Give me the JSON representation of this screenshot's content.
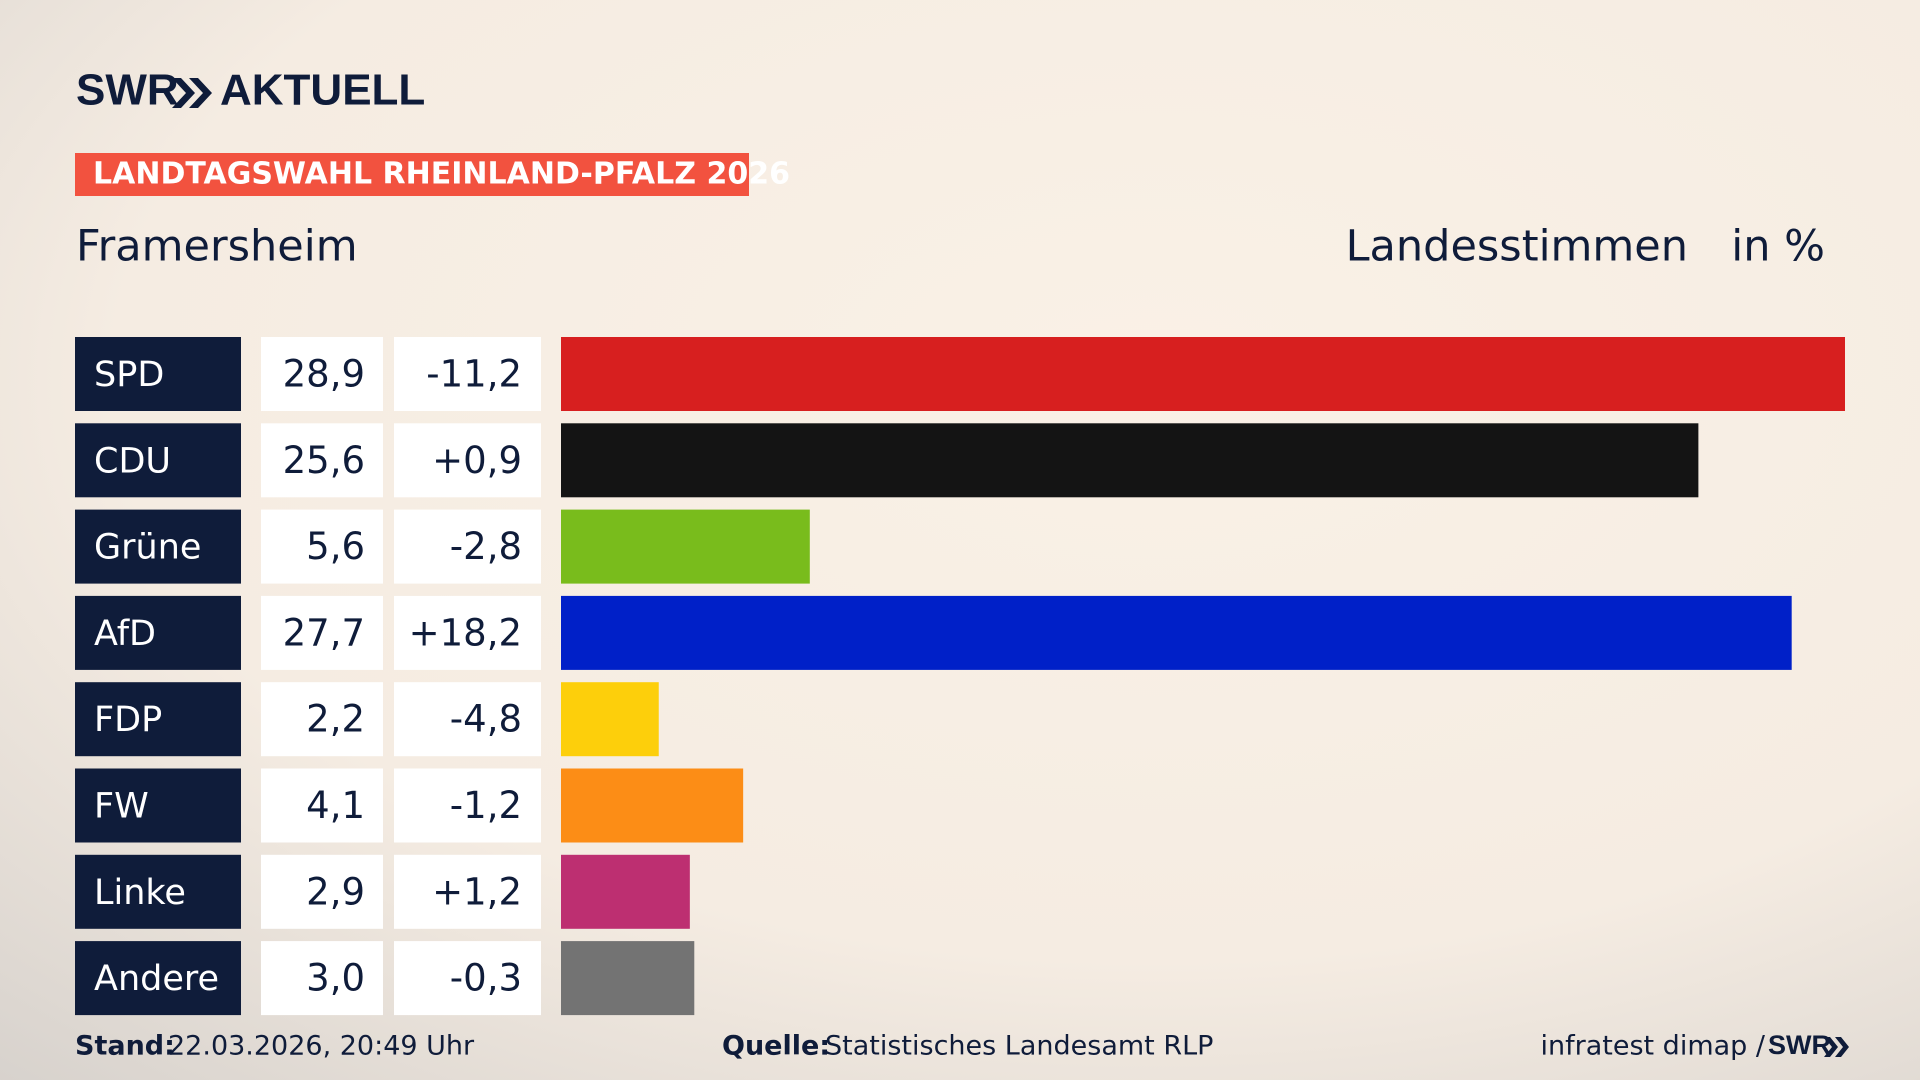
{
  "header": {
    "logo": "SWR",
    "brand": "AKTUELL"
  },
  "chart_data": {
    "type": "bar",
    "title": "LANDTAGSWAHL RHEINLAND-PFALZ 2026",
    "subtitle": "Framersheim",
    "value_label": "Landesstimmen",
    "unit": "in %",
    "categories": [
      "SPD",
      "CDU",
      "Grüne",
      "AfD",
      "FDP",
      "FW",
      "Linke",
      "Andere"
    ],
    "values": [
      28.9,
      25.6,
      5.6,
      27.7,
      2.2,
      4.1,
      2.9,
      3.0
    ],
    "value_labels": [
      "28,9",
      "25,6",
      "5,6",
      "27,7",
      "2,2",
      "4,1",
      "2,9",
      "3,0"
    ],
    "change_labels": [
      "-11,2",
      "+0,9",
      "-2,8",
      "+18,2",
      "-4,8",
      "-1,2",
      "+1,2",
      "-0,3"
    ],
    "colors": [
      "#d71f1f",
      "#141414",
      "#79bc1c",
      "#0020c8",
      "#fdcf0b",
      "#fc8d16",
      "#bd2f71",
      "#737373"
    ],
    "xlim": [
      0,
      28.9
    ]
  },
  "footer": {
    "stand_label": "Stand:",
    "stand": "22.03.2026, 20:49 Uhr",
    "source_label": "Quelle:",
    "source": "Statistisches Landesamt RLP",
    "credit": "infratest dimap /",
    "credit_logo": "SWR"
  }
}
